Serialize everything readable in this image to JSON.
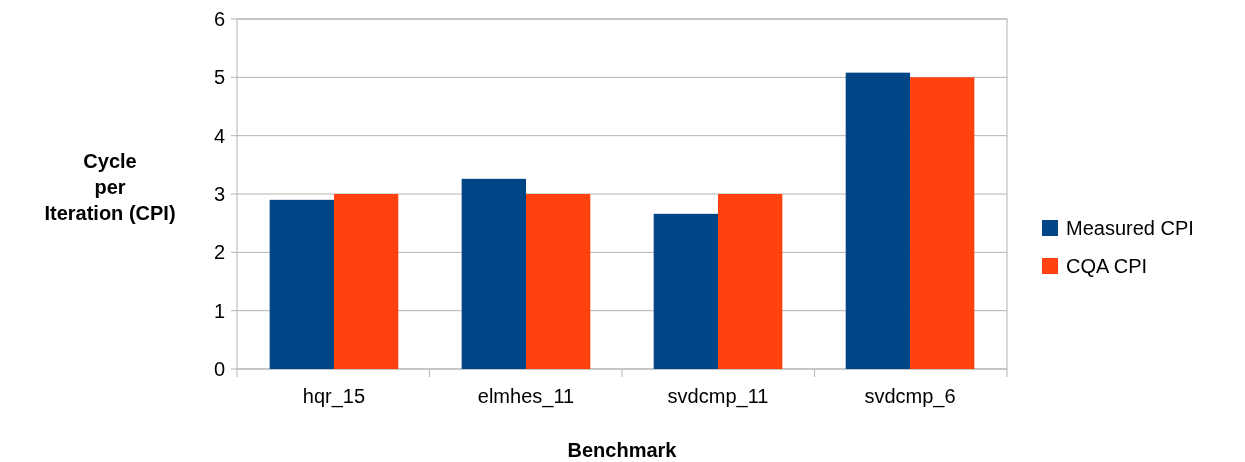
{
  "chart_data": {
    "type": "bar",
    "xlabel": "Benchmark",
    "ylabel": "Cycle\nper\nIteration (CPI)",
    "categories": [
      "hqr_15",
      "elmhes_11",
      "svdcmp_11",
      "svdcmp_6"
    ],
    "series": [
      {
        "name": "Measured CPI",
        "color": "#004586",
        "values": [
          2.9,
          3.26,
          2.66,
          5.08
        ]
      },
      {
        "name": "CQA CPI",
        "color": "#ff420e",
        "values": [
          3,
          3,
          3,
          5
        ]
      }
    ],
    "ylim": [
      0,
      6
    ],
    "yticks": [
      0,
      1,
      2,
      3,
      4,
      5,
      6
    ],
    "grid": "y",
    "legend": "right"
  }
}
